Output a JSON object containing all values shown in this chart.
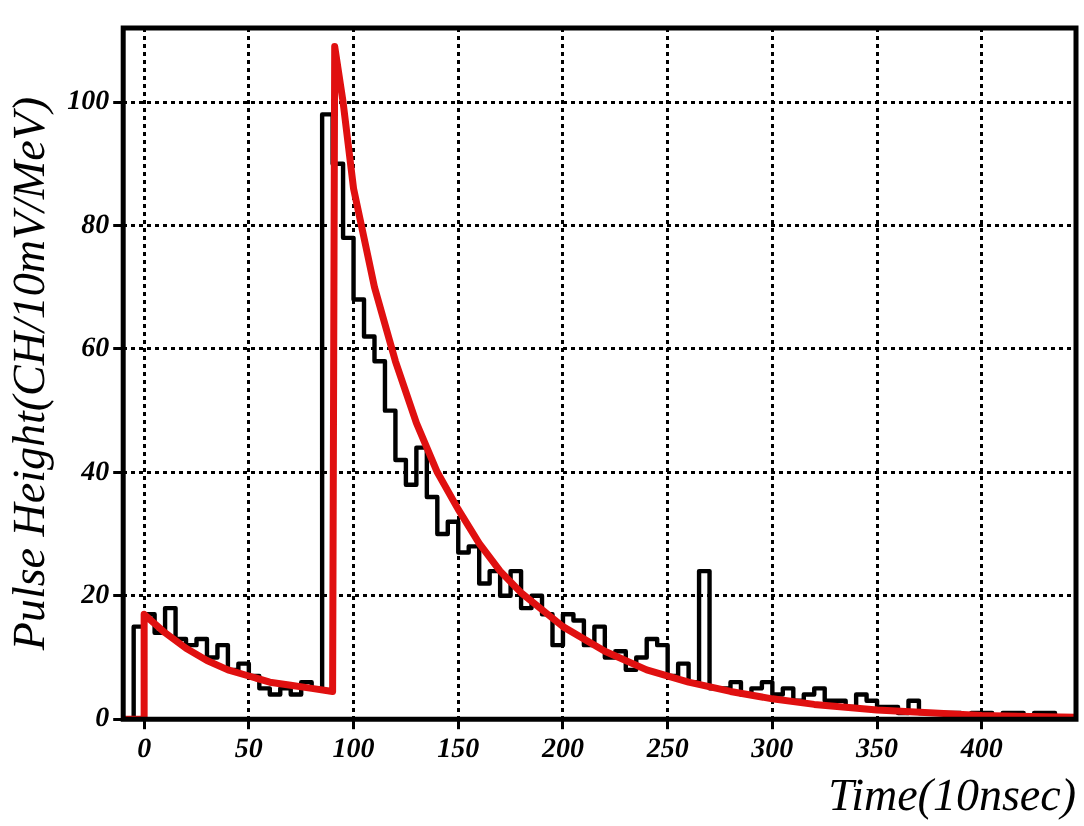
{
  "chart_data": {
    "type": "step",
    "xlabel": "Time(10nsec)",
    "ylabel": "Pulse Height(CH/10mV/MeV)",
    "xlim": [
      -10,
      445
    ],
    "ylim": [
      0,
      112
    ],
    "xticks": [
      0,
      50,
      100,
      150,
      200,
      250,
      300,
      350,
      400
    ],
    "yticks": [
      0,
      20,
      40,
      60,
      80,
      100
    ],
    "grid": true,
    "legend": false,
    "marker": "none",
    "series": [
      {
        "color": "#000000",
        "x": [
          -10,
          -5,
          0,
          5,
          10,
          15,
          20,
          25,
          30,
          35,
          40,
          45,
          50,
          55,
          60,
          65,
          70,
          75,
          80,
          85,
          90,
          95,
          100,
          105,
          110,
          115,
          120,
          125,
          130,
          135,
          140,
          145,
          150,
          155,
          160,
          165,
          170,
          175,
          180,
          185,
          190,
          195,
          200,
          205,
          210,
          215,
          220,
          225,
          230,
          235,
          240,
          245,
          250,
          255,
          260,
          265,
          270,
          275,
          280,
          285,
          290,
          295,
          300,
          305,
          310,
          315,
          320,
          325,
          330,
          335,
          340,
          345,
          350,
          355,
          360,
          365,
          370,
          375,
          380,
          385,
          390,
          395,
          400,
          405,
          410,
          415,
          420,
          425,
          430,
          435,
          440,
          445
        ],
        "values": [
          0,
          0,
          15,
          17,
          14,
          18,
          13,
          12,
          13,
          10,
          12,
          8,
          9,
          7,
          5,
          4,
          5,
          4,
          6,
          5,
          98,
          90,
          78,
          68,
          62,
          58,
          50,
          42,
          38,
          44,
          36,
          30,
          32,
          27,
          28,
          22,
          24,
          20,
          24,
          18,
          20,
          17,
          12,
          17,
          16,
          12,
          15,
          10,
          11,
          8,
          10,
          13,
          12,
          7,
          9,
          6,
          24,
          5,
          5,
          6,
          4,
          5,
          6,
          4,
          5,
          3,
          4,
          5,
          3,
          3,
          2,
          4,
          3,
          2,
          2,
          1,
          3,
          1,
          1,
          1,
          1,
          0,
          1,
          1,
          0,
          1,
          1,
          0,
          1,
          1,
          0,
          0
        ]
      },
      {
        "type": "line",
        "color": "#e01010",
        "x": [
          -10,
          0,
          0,
          10,
          20,
          30,
          40,
          50,
          60,
          70,
          80,
          90,
          91,
          95,
          100,
          110,
          120,
          130,
          140,
          150,
          160,
          170,
          180,
          200,
          220,
          240,
          260,
          280,
          300,
          320,
          350,
          400,
          445
        ],
        "values": [
          0,
          0,
          17,
          14,
          11.5,
          9.5,
          8,
          7,
          6,
          5.5,
          5,
          4.5,
          109,
          100,
          86,
          70,
          58,
          48,
          40,
          34,
          28.5,
          24,
          20.5,
          15,
          11,
          8,
          6,
          4.5,
          3.3,
          2.4,
          1.5,
          0.6,
          0.3
        ]
      }
    ]
  }
}
